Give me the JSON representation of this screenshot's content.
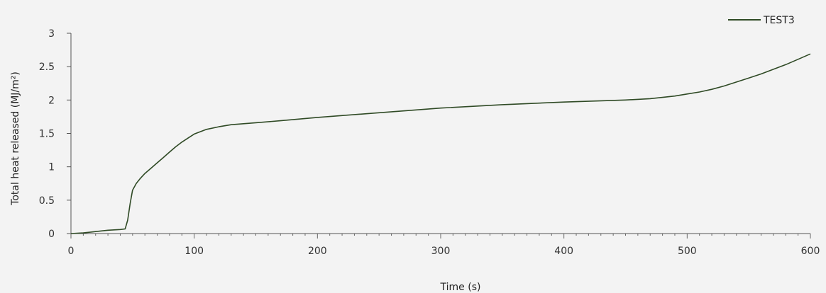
{
  "chart_data": {
    "type": "line",
    "xlabel": "Time (s)",
    "ylabel": "Total heat released (MJ/m²)",
    "xlim": [
      0,
      600
    ],
    "ylim": [
      0,
      3
    ],
    "xticks": [
      0,
      100,
      200,
      300,
      400,
      500,
      600
    ],
    "yticks": [
      0,
      0.5,
      1,
      1.5,
      2,
      2.5,
      3
    ],
    "ytick_labels": [
      "0",
      "0.5",
      "1",
      "1.5",
      "2",
      "2.5",
      "3"
    ],
    "grid": false,
    "legend_position": "top-right",
    "series": [
      {
        "name": "TEST3",
        "color": "#2f4a25",
        "x": [
          0,
          10,
          20,
          30,
          40,
          44,
          46,
          48,
          50,
          53,
          56,
          60,
          65,
          70,
          75,
          80,
          85,
          90,
          95,
          100,
          110,
          120,
          130,
          150,
          170,
          200,
          250,
          300,
          350,
          400,
          450,
          470,
          480,
          490,
          500,
          510,
          520,
          530,
          540,
          550,
          560,
          570,
          580,
          590,
          600
        ],
        "values": [
          0,
          0.01,
          0.03,
          0.05,
          0.06,
          0.07,
          0.2,
          0.45,
          0.65,
          0.75,
          0.82,
          0.9,
          0.98,
          1.06,
          1.14,
          1.22,
          1.3,
          1.37,
          1.43,
          1.49,
          1.56,
          1.6,
          1.63,
          1.66,
          1.69,
          1.74,
          1.81,
          1.88,
          1.93,
          1.97,
          2.0,
          2.02,
          2.04,
          2.06,
          2.09,
          2.12,
          2.16,
          2.21,
          2.27,
          2.33,
          2.39,
          2.46,
          2.53,
          2.61,
          2.69
        ]
      }
    ]
  }
}
